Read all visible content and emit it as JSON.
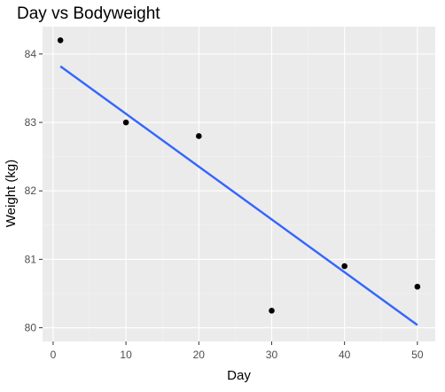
{
  "chart_data": {
    "type": "scatter",
    "title": "Day vs Bodyweight",
    "xlabel": "Day",
    "ylabel": "Weight (kg)",
    "xlim": [
      -1.45,
      52.45
    ],
    "ylim": [
      79.8,
      84.4
    ],
    "x_ticks": [
      0,
      10,
      20,
      30,
      40,
      50
    ],
    "y_ticks": [
      80,
      81,
      82,
      83,
      84
    ],
    "points": [
      {
        "x": 1,
        "y": 84.2
      },
      {
        "x": 10,
        "y": 83.0
      },
      {
        "x": 20,
        "y": 82.8
      },
      {
        "x": 30,
        "y": 80.25
      },
      {
        "x": 40,
        "y": 80.9
      },
      {
        "x": 50,
        "y": 80.6
      }
    ],
    "trend_line": {
      "x": [
        1,
        50
      ],
      "y": [
        83.82,
        80.04
      ],
      "method": "linear"
    },
    "grid": true,
    "colors": {
      "panel_background": "#ebebeb",
      "grid_major": "#ffffff",
      "grid_minor": "#f4f4f4",
      "points": "#000000",
      "trend_line": "#3366ff"
    }
  }
}
